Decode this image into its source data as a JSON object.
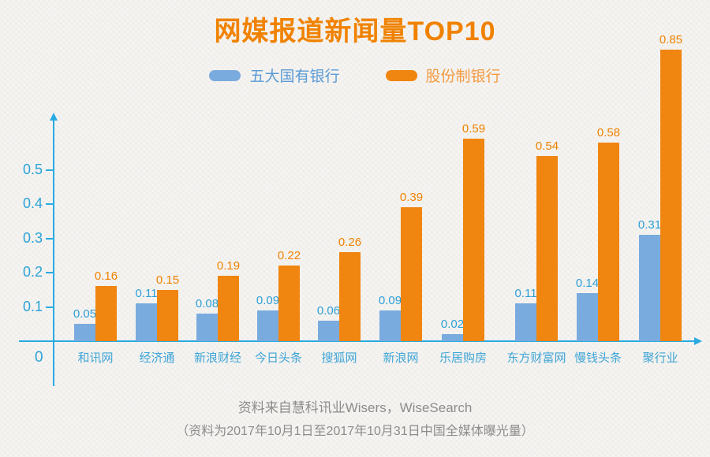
{
  "title": "网媒报道新闻量TOP10",
  "legend": {
    "items": [
      {
        "label": "五大国有银行",
        "color": "#7aabde",
        "text_color": "#5b9bd5"
      },
      {
        "label": "股份制银行",
        "color": "#f0850f",
        "text_color": "#f49b42"
      }
    ]
  },
  "chart_data": {
    "type": "bar",
    "title": "网媒报道新闻量TOP10",
    "categories": [
      "和讯网",
      "经济通",
      "新浪财经",
      "今日头条",
      "搜狐网",
      "新浪网",
      "乐居购房",
      "东方财富网",
      "慢钱头条",
      "聚行业"
    ],
    "series": [
      {
        "name": "五大国有银行",
        "color": "#7aabde",
        "label_color": "#2e9fd6",
        "values": [
          0.05,
          0.11,
          0.08,
          0.09,
          0.06,
          0.09,
          0.02,
          0.11,
          0.14,
          0.31
        ]
      },
      {
        "name": "股份制银行",
        "color": "#f0850f",
        "label_color": "#ef8200",
        "values": [
          0.16,
          0.15,
          0.19,
          0.22,
          0.26,
          0.39,
          0.59,
          0.54,
          0.58,
          0.85
        ]
      }
    ],
    "xlabel": "",
    "ylabel": "",
    "y_ticks": [
      0,
      0.1,
      0.2,
      0.3,
      0.4,
      0.5
    ],
    "ylim": [
      0,
      0.9
    ],
    "grid": false,
    "legend_position": "top",
    "axis_color": "#29abe2",
    "tick_label_color": "#2ba3d6",
    "category_label_color": "#3fa5d6"
  },
  "footer": {
    "line1": "资料来自慧科讯业Wisers，WiseSearch",
    "line2": "（资料为2017年10月1日至2017年10月31日中国全媒体曝光量）"
  },
  "colors": {
    "background": "#f3f1ee",
    "title": "#f08200",
    "footer_text": "#8c8c8c"
  }
}
